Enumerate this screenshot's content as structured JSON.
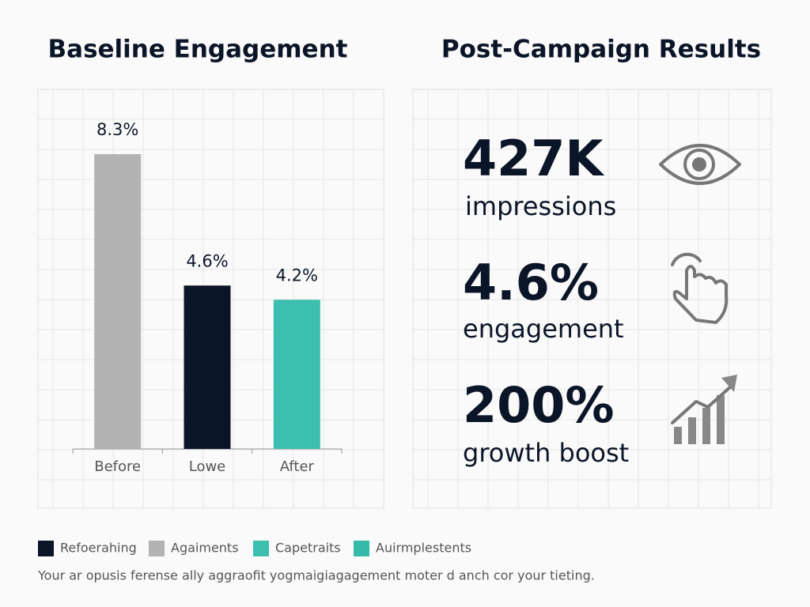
{
  "chart_data": {
    "type": "bar",
    "title": "Baseline Engagement",
    "categories": [
      "Before",
      "Lowe",
      "After"
    ],
    "values": [
      8.3,
      4.6,
      4.2
    ],
    "value_labels": [
      "8.3%",
      "4.6%",
      "4.2%"
    ],
    "colors": [
      "#b3b3b3",
      "#0b1528",
      "#3dbfb0"
    ]
  },
  "stats": {
    "title": "Post-Campaign Results",
    "items": [
      {
        "value": "427K",
        "label": "impressions"
      },
      {
        "value": "4.6%",
        "label": "engagement"
      },
      {
        "value": "200%",
        "label": "growth boost"
      }
    ]
  },
  "legend": [
    {
      "label": "Refoerahing",
      "color": "#0b1528"
    },
    {
      "label": "Agaiments",
      "color": "#b3b3b3"
    },
    {
      "label": "Capetraits",
      "color": "#3dbfb0"
    },
    {
      "label": "Auirmplestents",
      "color": "#35b9a8"
    }
  ],
  "footnote": "Your ar opusis ferense ally aggraofit yogmaigiagagement moter d anch cor your tieting."
}
